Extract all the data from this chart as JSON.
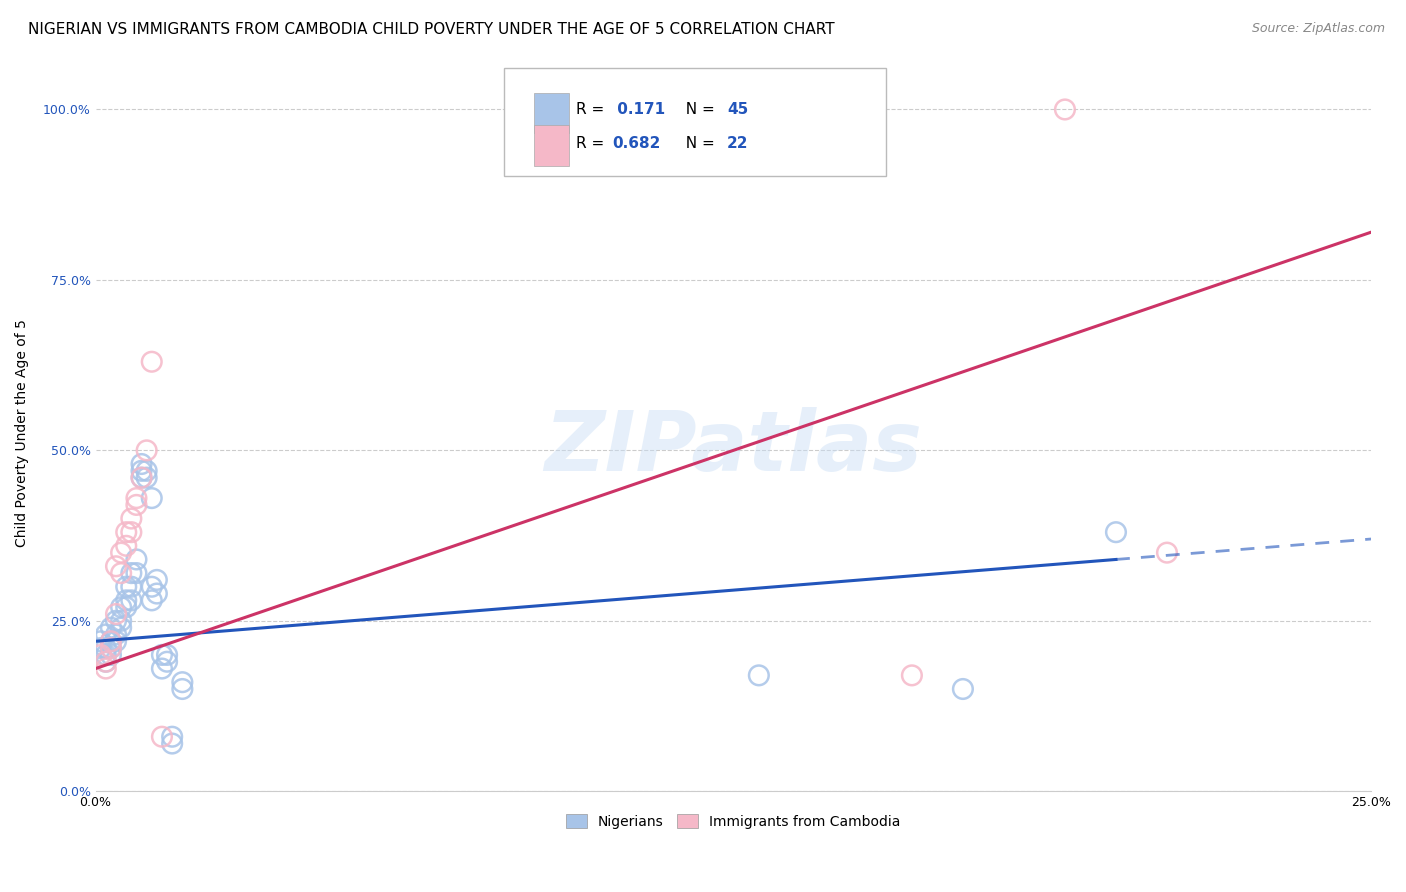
{
  "title": "NIGERIAN VS IMMIGRANTS FROM CAMBODIA CHILD POVERTY UNDER THE AGE OF 5 CORRELATION CHART",
  "source": "Source: ZipAtlas.com",
  "ylabel": "Child Poverty Under the Age of 5",
  "legend_labels": [
    "Nigerians",
    "Immigrants from Cambodia"
  ],
  "r_blue": 0.171,
  "n_blue": 45,
  "r_pink": 0.682,
  "n_pink": 22,
  "blue_color": "#a8c4e8",
  "pink_color": "#f5b8c8",
  "blue_line_color": "#2255bb",
  "pink_line_color": "#cc3366",
  "blue_scatter": [
    [
      0.001,
      0.22
    ],
    [
      0.001,
      0.21
    ],
    [
      0.002,
      0.23
    ],
    [
      0.002,
      0.2
    ],
    [
      0.002,
      0.21
    ],
    [
      0.002,
      0.19
    ],
    [
      0.003,
      0.24
    ],
    [
      0.003,
      0.22
    ],
    [
      0.003,
      0.2
    ],
    [
      0.003,
      0.21
    ],
    [
      0.004,
      0.25
    ],
    [
      0.004,
      0.23
    ],
    [
      0.004,
      0.22
    ],
    [
      0.005,
      0.27
    ],
    [
      0.005,
      0.25
    ],
    [
      0.005,
      0.24
    ],
    [
      0.006,
      0.3
    ],
    [
      0.006,
      0.28
    ],
    [
      0.006,
      0.27
    ],
    [
      0.007,
      0.32
    ],
    [
      0.007,
      0.3
    ],
    [
      0.007,
      0.28
    ],
    [
      0.008,
      0.34
    ],
    [
      0.008,
      0.32
    ],
    [
      0.009,
      0.48
    ],
    [
      0.009,
      0.47
    ],
    [
      0.009,
      0.46
    ],
    [
      0.01,
      0.46
    ],
    [
      0.01,
      0.47
    ],
    [
      0.011,
      0.43
    ],
    [
      0.011,
      0.3
    ],
    [
      0.011,
      0.28
    ],
    [
      0.012,
      0.31
    ],
    [
      0.012,
      0.29
    ],
    [
      0.013,
      0.2
    ],
    [
      0.013,
      0.18
    ],
    [
      0.014,
      0.2
    ],
    [
      0.014,
      0.19
    ],
    [
      0.015,
      0.08
    ],
    [
      0.015,
      0.07
    ],
    [
      0.017,
      0.16
    ],
    [
      0.017,
      0.15
    ],
    [
      0.13,
      0.17
    ],
    [
      0.17,
      0.15
    ],
    [
      0.2,
      0.38
    ]
  ],
  "pink_scatter": [
    [
      0.001,
      0.2
    ],
    [
      0.002,
      0.19
    ],
    [
      0.002,
      0.18
    ],
    [
      0.003,
      0.22
    ],
    [
      0.003,
      0.21
    ],
    [
      0.004,
      0.26
    ],
    [
      0.004,
      0.33
    ],
    [
      0.005,
      0.35
    ],
    [
      0.005,
      0.32
    ],
    [
      0.006,
      0.38
    ],
    [
      0.006,
      0.36
    ],
    [
      0.007,
      0.4
    ],
    [
      0.007,
      0.38
    ],
    [
      0.008,
      0.43
    ],
    [
      0.008,
      0.42
    ],
    [
      0.009,
      0.46
    ],
    [
      0.01,
      0.5
    ],
    [
      0.011,
      0.63
    ],
    [
      0.013,
      0.08
    ],
    [
      0.16,
      0.17
    ],
    [
      0.19,
      1.0
    ],
    [
      0.21,
      0.35
    ]
  ],
  "xmin": 0.0,
  "xmax": 0.25,
  "ymin": 0.0,
  "ymax": 1.05,
  "yticks": [
    0.0,
    0.25,
    0.5,
    0.75,
    1.0
  ],
  "ytick_labels": [
    "0.0%",
    "25.0%",
    "50.0%",
    "75.0%",
    "100.0%"
  ],
  "xticks": [
    0.0,
    0.05,
    0.1,
    0.15,
    0.2,
    0.25
  ],
  "xtick_labels": [
    "0.0%",
    "",
    "",
    "",
    "",
    "25.0%"
  ],
  "watermark": "ZIPatlas",
  "title_fontsize": 11,
  "axis_label_fontsize": 10,
  "tick_fontsize": 9,
  "blue_trend": [
    0.0,
    0.22,
    0.25,
    0.37
  ],
  "pink_trend": [
    0.0,
    0.18,
    0.25,
    0.82
  ]
}
